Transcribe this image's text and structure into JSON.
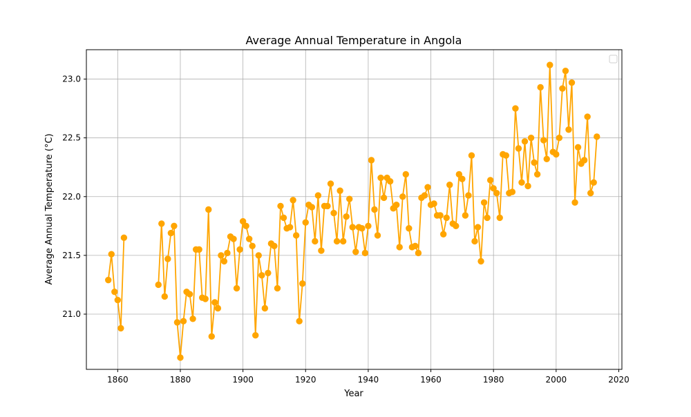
{
  "chart_data": {
    "type": "line",
    "title": "Average Annual Temperature in Angola",
    "xlabel": "Year",
    "ylabel": "Average Annual Temperature (°C)",
    "xlim": [
      1850,
      2021
    ],
    "ylim": [
      20.53,
      23.25
    ],
    "xticks": [
      1860,
      1880,
      1900,
      1920,
      1940,
      1960,
      1980,
      2000,
      2020
    ],
    "yticks": [
      21.0,
      21.5,
      22.0,
      22.5,
      23.0
    ],
    "ytick_labels": [
      "21.0",
      "21.5",
      "22.0",
      "22.5",
      "23.0"
    ],
    "grid": true,
    "legend": {
      "placement": "top-right",
      "entries": []
    },
    "series": [
      {
        "color": "#FFA500",
        "marker": "circle",
        "segments": [
          {
            "x": [
              1857,
              1858,
              1859,
              1860,
              1861,
              1862
            ],
            "y": [
              21.29,
              21.51,
              21.19,
              21.12,
              20.88,
              21.65
            ]
          },
          {
            "x": [
              1873,
              1874,
              1875,
              1876,
              1877,
              1878,
              1879,
              1880,
              1881,
              1882,
              1883,
              1884,
              1885,
              1886,
              1887,
              1888,
              1889,
              1890,
              1891,
              1892,
              1893,
              1894,
              1895,
              1896,
              1897,
              1898,
              1899,
              1900,
              1901,
              1902,
              1903,
              1904,
              1905,
              1906,
              1907,
              1908,
              1909,
              1910,
              1911,
              1912,
              1913,
              1914,
              1915,
              1916,
              1917,
              1918,
              1919,
              1920,
              1921,
              1922,
              1923,
              1924,
              1925,
              1926,
              1927,
              1928,
              1929,
              1930,
              1931,
              1932,
              1933,
              1934,
              1935,
              1936,
              1937,
              1938,
              1939,
              1940,
              1941,
              1942,
              1943,
              1944,
              1945,
              1946,
              1947,
              1948,
              1949,
              1950,
              1951,
              1952,
              1953,
              1954,
              1955,
              1956,
              1957,
              1958,
              1959,
              1960,
              1961,
              1962,
              1963,
              1964,
              1965,
              1966,
              1967,
              1968,
              1969,
              1970,
              1971,
              1972,
              1973,
              1974,
              1975,
              1976,
              1977,
              1978,
              1979,
              1980,
              1981,
              1982,
              1983,
              1984,
              1985,
              1986,
              1987,
              1988,
              1989,
              1990,
              1991,
              1992,
              1993,
              1994,
              1995,
              1996,
              1997,
              1998,
              1999,
              2000,
              2001,
              2002,
              2003,
              2004,
              2005,
              2006,
              2007,
              2008,
              2009,
              2010,
              2011,
              2012,
              2013
            ],
            "y": [
              21.25,
              21.77,
              21.15,
              21.47,
              21.69,
              21.75,
              20.93,
              20.63,
              20.94,
              21.19,
              21.17,
              20.96,
              21.55,
              21.55,
              21.14,
              21.13,
              21.89,
              20.81,
              21.1,
              21.05,
              21.5,
              21.45,
              21.52,
              21.66,
              21.64,
              21.22,
              21.55,
              21.79,
              21.75,
              21.64,
              21.58,
              20.82,
              21.5,
              21.33,
              21.05,
              21.35,
              21.6,
              21.58,
              21.22,
              21.92,
              21.82,
              21.73,
              21.74,
              21.97,
              21.67,
              20.94,
              21.26,
              21.78,
              21.93,
              21.91,
              21.62,
              22.01,
              21.54,
              21.92,
              21.92,
              22.11,
              21.86,
              21.62,
              22.05,
              21.62,
              21.83,
              21.98,
              21.74,
              21.53,
              21.74,
              21.73,
              21.52,
              21.75,
              22.31,
              21.89,
              21.67,
              22.16,
              21.99,
              22.16,
              22.13,
              21.9,
              21.93,
              21.57,
              22.0,
              22.19,
              21.73,
              21.57,
              21.58,
              21.52,
              21.99,
              22.01,
              22.08,
              21.93,
              21.94,
              21.84,
              21.84,
              21.68,
              21.82,
              22.1,
              21.77,
              21.75,
              22.19,
              22.15,
              21.84,
              22.01,
              22.35,
              21.62,
              21.74,
              21.45,
              21.95,
              21.82,
              22.14,
              22.07,
              22.03,
              21.82,
              22.36,
              22.35,
              22.03,
              22.04,
              22.75,
              22.41,
              22.12,
              22.47,
              22.09,
              22.5,
              22.29,
              22.19,
              22.93,
              22.48,
              22.32,
              23.12,
              22.38,
              22.36,
              22.5,
              22.92,
              23.07,
              22.57,
              22.97,
              21.95,
              22.42,
              22.28,
              22.31,
              22.68,
              22.03,
              22.12,
              22.51
            ]
          }
        ]
      }
    ]
  }
}
